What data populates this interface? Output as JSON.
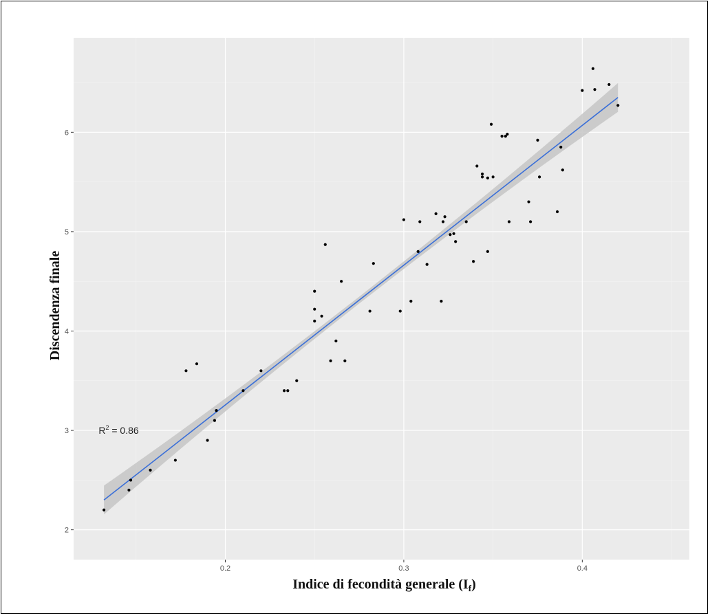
{
  "chart_data": {
    "type": "scatter",
    "xlabel": "Indice di fecondità generale (I",
    "xlabel_sub": "f",
    "xlabel_close": ")",
    "ylabel": "Discendenza finale",
    "xlim": [
      0.115,
      0.46
    ],
    "ylim": [
      1.7,
      6.95
    ],
    "grid": true,
    "x_ticks": [
      0.2,
      0.3,
      0.4
    ],
    "x_tick_labels": [
      "0.2",
      "0.3",
      "0.4"
    ],
    "y_ticks": [
      2,
      3,
      4,
      5,
      6
    ],
    "y_tick_labels": [
      "2",
      "3",
      "4",
      "5",
      "6"
    ],
    "annotation": {
      "prefix": "R",
      "sup": "2",
      "text": " = 0.86",
      "x": 0.129,
      "y": 3.0
    },
    "fit": {
      "x_start": 0.132,
      "x_end": 0.42,
      "y_start": 2.3,
      "y_end": 6.35,
      "color": "#3a6fd8",
      "band_color": "#c6c6c6"
    },
    "points": [
      [
        0.132,
        2.2
      ],
      [
        0.146,
        2.4
      ],
      [
        0.147,
        2.5
      ],
      [
        0.158,
        2.6
      ],
      [
        0.172,
        2.7
      ],
      [
        0.178,
        3.6
      ],
      [
        0.184,
        3.67
      ],
      [
        0.19,
        2.9
      ],
      [
        0.194,
        3.1
      ],
      [
        0.195,
        3.2
      ],
      [
        0.21,
        3.4
      ],
      [
        0.22,
        3.6
      ],
      [
        0.233,
        3.4
      ],
      [
        0.235,
        3.4
      ],
      [
        0.24,
        3.5
      ],
      [
        0.25,
        4.1
      ],
      [
        0.25,
        4.22
      ],
      [
        0.25,
        4.4
      ],
      [
        0.254,
        4.15
      ],
      [
        0.256,
        4.87
      ],
      [
        0.259,
        3.7
      ],
      [
        0.262,
        3.9
      ],
      [
        0.265,
        4.5
      ],
      [
        0.267,
        3.7
      ],
      [
        0.281,
        4.2
      ],
      [
        0.283,
        4.68
      ],
      [
        0.298,
        4.2
      ],
      [
        0.3,
        5.12
      ],
      [
        0.304,
        4.3
      ],
      [
        0.308,
        4.8
      ],
      [
        0.309,
        5.1
      ],
      [
        0.313,
        4.67
      ],
      [
        0.318,
        5.18
      ],
      [
        0.321,
        4.3
      ],
      [
        0.322,
        5.1
      ],
      [
        0.323,
        5.15
      ],
      [
        0.326,
        4.97
      ],
      [
        0.328,
        4.98
      ],
      [
        0.329,
        4.9
      ],
      [
        0.335,
        5.1
      ],
      [
        0.339,
        4.7
      ],
      [
        0.341,
        5.66
      ],
      [
        0.344,
        5.55
      ],
      [
        0.344,
        5.58
      ],
      [
        0.347,
        5.54
      ],
      [
        0.347,
        4.8
      ],
      [
        0.349,
        6.08
      ],
      [
        0.35,
        5.55
      ],
      [
        0.355,
        5.96
      ],
      [
        0.357,
        5.96
      ],
      [
        0.358,
        5.98
      ],
      [
        0.359,
        5.1
      ],
      [
        0.37,
        5.3
      ],
      [
        0.371,
        5.1
      ],
      [
        0.375,
        5.92
      ],
      [
        0.376,
        5.55
      ],
      [
        0.386,
        5.2
      ],
      [
        0.388,
        5.85
      ],
      [
        0.389,
        5.62
      ],
      [
        0.4,
        6.42
      ],
      [
        0.406,
        6.64
      ],
      [
        0.407,
        6.43
      ],
      [
        0.415,
        6.48
      ],
      [
        0.42,
        6.27
      ]
    ]
  }
}
